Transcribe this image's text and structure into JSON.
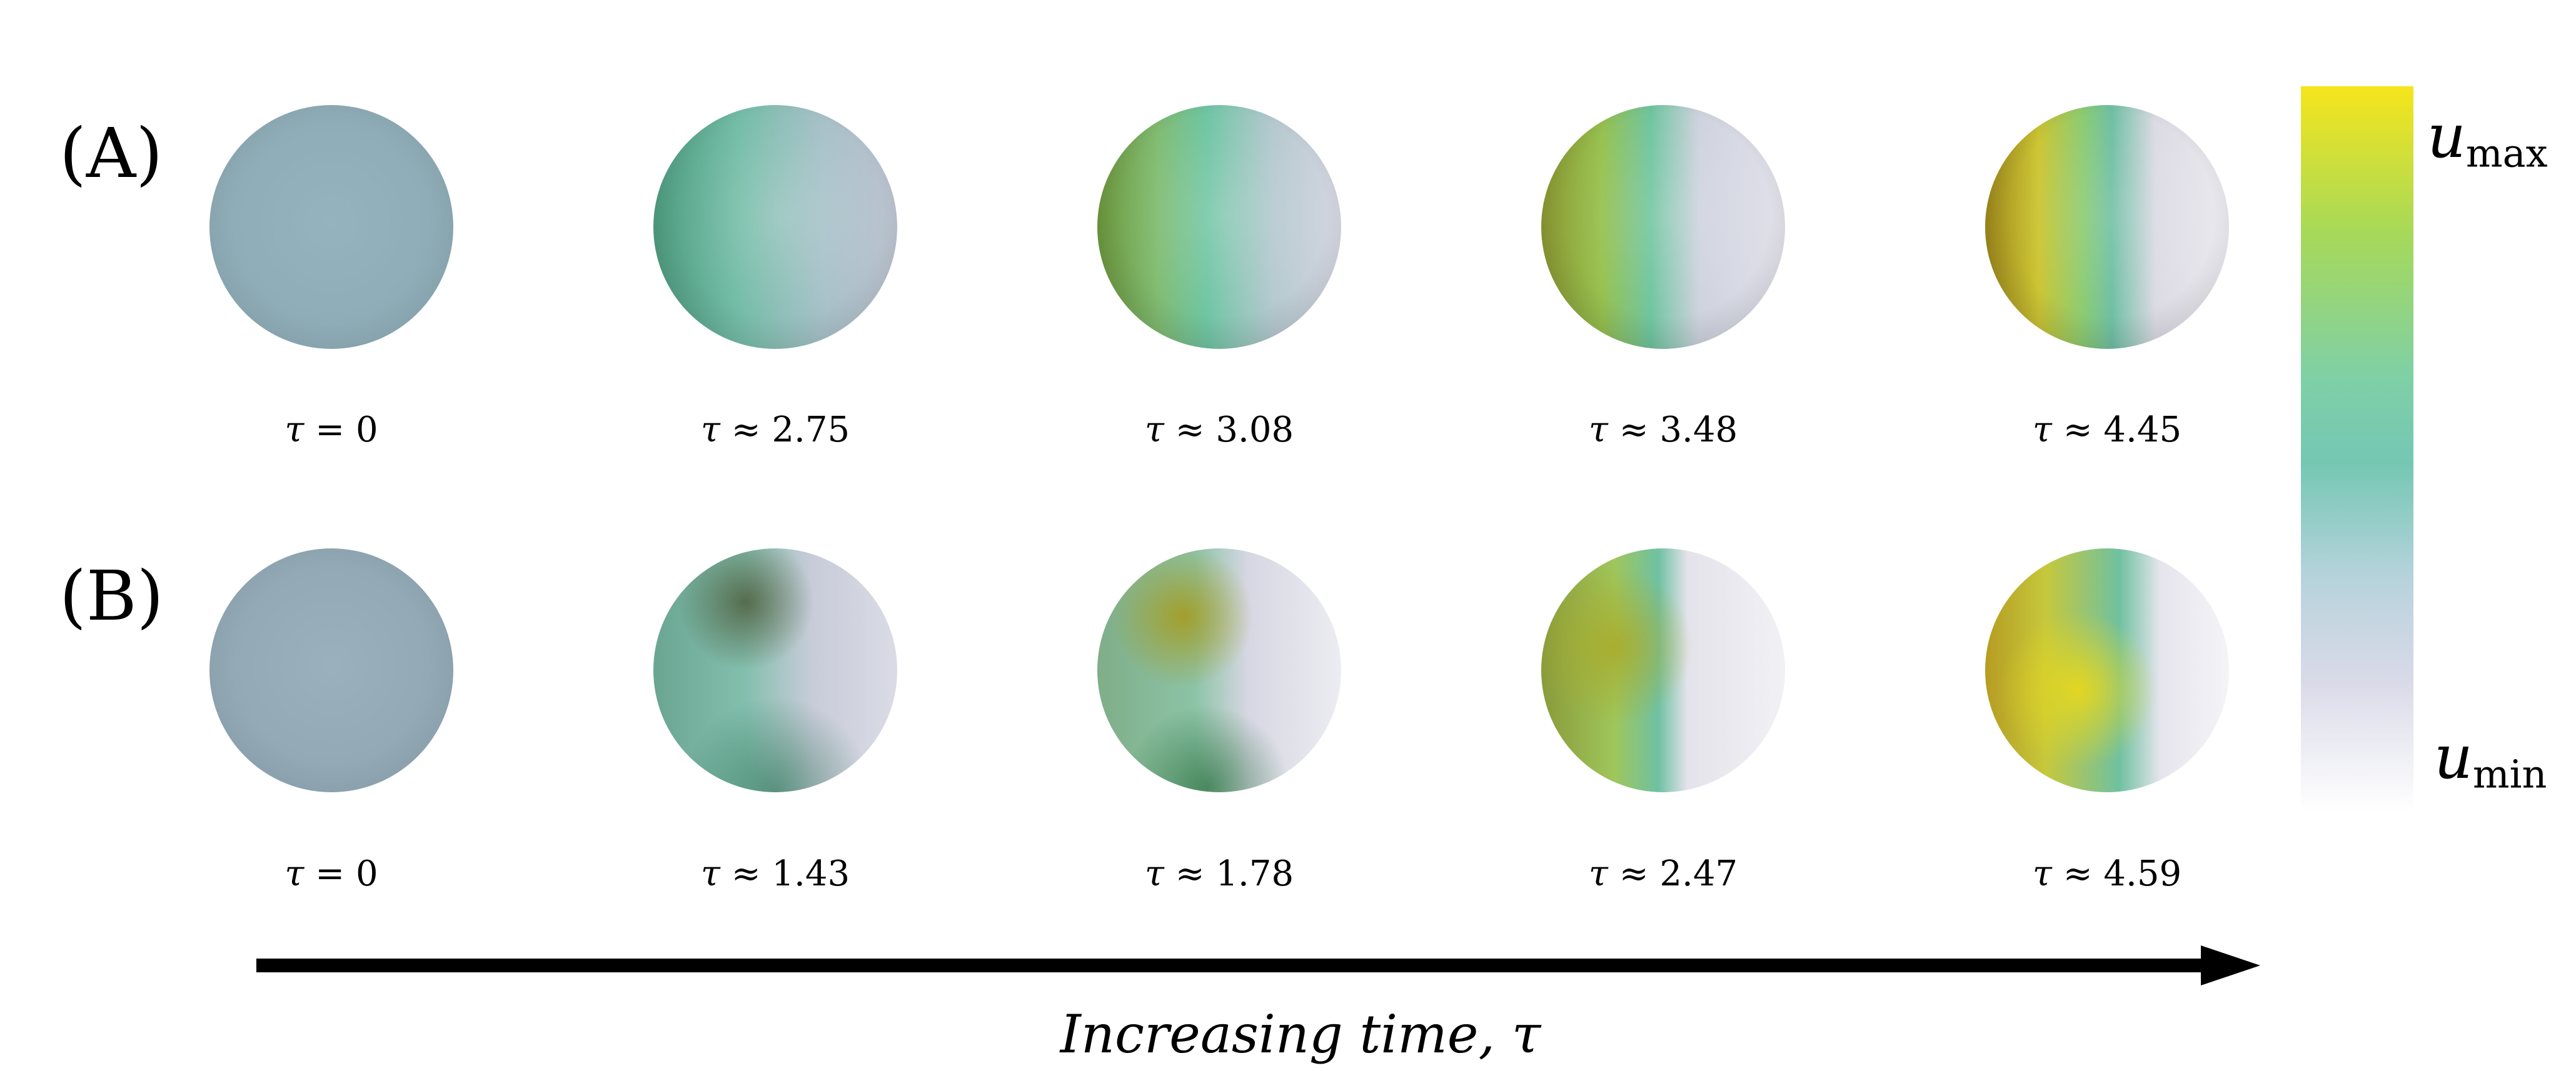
{
  "rows": [
    {
      "label": "(A)",
      "taus": [
        "0",
        "2.75",
        "3.08",
        "3.48",
        "4.45"
      ]
    },
    {
      "label": "(B)",
      "taus": [
        "0",
        "1.43",
        "1.78",
        "2.47",
        "4.59"
      ]
    }
  ],
  "tau_symbol": "τ",
  "tau_relations": [
    "=",
    "≈",
    "≈",
    "≈",
    "≈"
  ],
  "axis_caption": "Increasing time, τ",
  "colorbar": {
    "var": "u",
    "max_sub": "max",
    "min_sub": "min",
    "colors": [
      "#f6e51c",
      "#a7d958",
      "#7fd0a6",
      "#b7d3dc",
      "#ffffff"
    ]
  }
}
